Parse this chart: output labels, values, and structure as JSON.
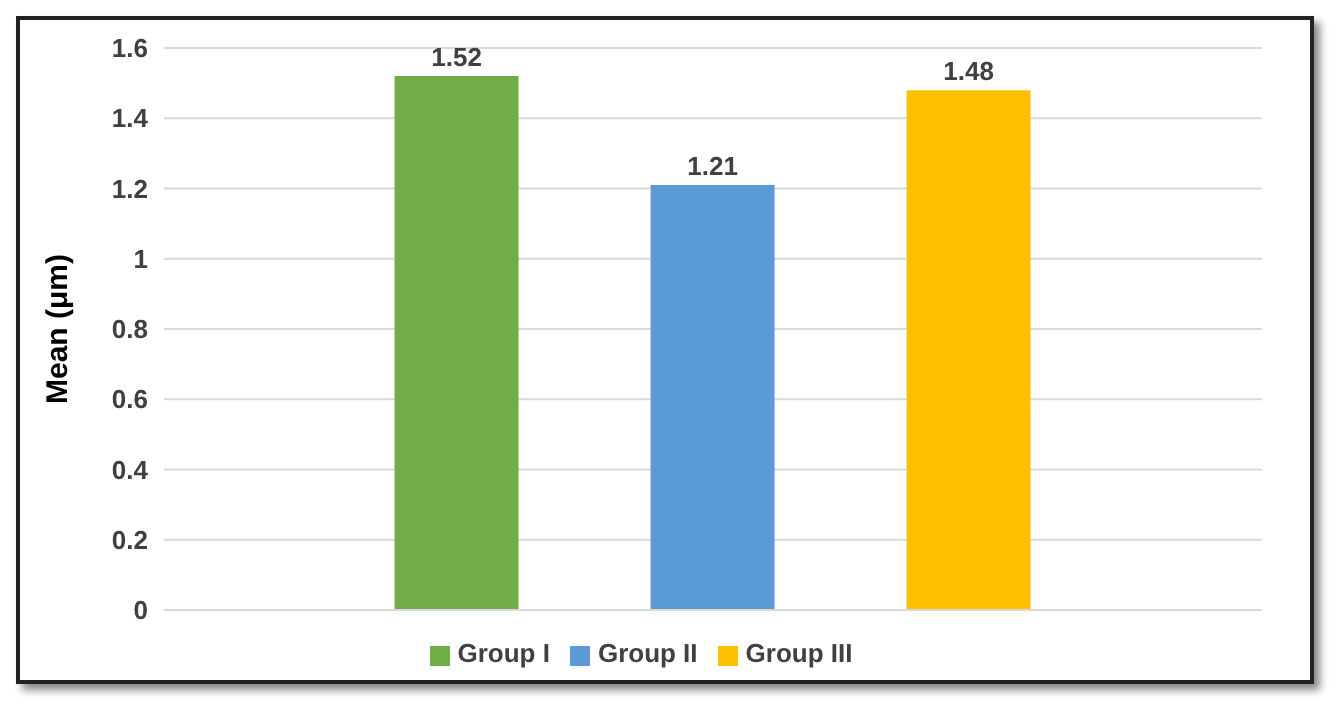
{
  "chart_data": {
    "type": "bar",
    "ylabel": "Mean (μm)",
    "categories": [
      null
    ],
    "series": [
      {
        "name": "Group I",
        "color": "#70ad47",
        "values": [
          1.52
        ]
      },
      {
        "name": "Group II",
        "color": "#5b9bd5",
        "values": [
          1.21
        ]
      },
      {
        "name": "Group III",
        "color": "#ffc000",
        "values": [
          1.48
        ]
      }
    ],
    "ylim": [
      0,
      1.6
    ],
    "yticks": [
      0,
      0.2,
      0.4,
      0.6,
      0.8,
      1,
      1.2,
      1.4,
      1.6
    ],
    "grid": "y",
    "legend": "bottom",
    "data_labels": true
  }
}
